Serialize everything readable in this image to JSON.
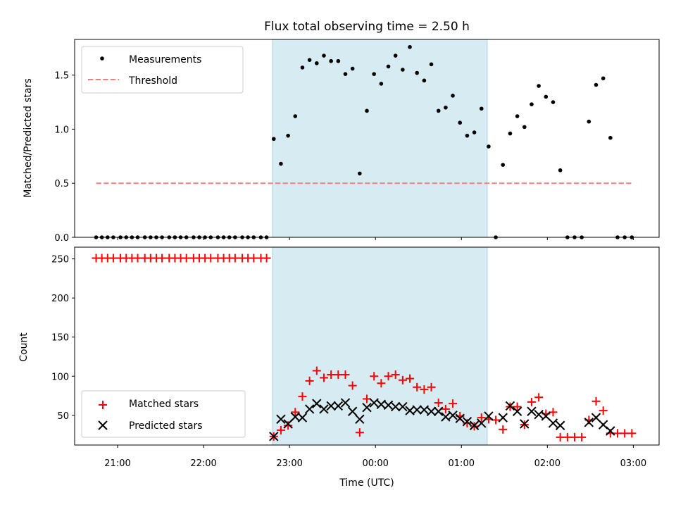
{
  "chart_data": [
    {
      "type": "scatter",
      "title": "Flux total observing time = 2.50 h",
      "xlabel": "",
      "ylabel": "Matched/Predicted stars",
      "ylim": [
        0,
        1.83
      ],
      "yticks": [
        "0.0",
        "0.5",
        "1.0",
        "1.5"
      ],
      "xlim": [
        "20:30",
        "03:18"
      ],
      "legend": {
        "position": "upper-left",
        "entries": [
          "Measurements",
          "Threshold"
        ]
      },
      "shaded_span": {
        "from": "22:48",
        "to": "01:18",
        "color": "#add8e6"
      },
      "series": [
        {
          "name": "Measurements",
          "marker": "dot",
          "color": "#000000",
          "points": [
            [
              "20:45",
              0
            ],
            [
              "20:49",
              0
            ],
            [
              "20:53",
              0
            ],
            [
              "20:57",
              0
            ],
            [
              "21:02",
              0
            ],
            [
              "21:06",
              0
            ],
            [
              "21:10",
              0
            ],
            [
              "21:14",
              0
            ],
            [
              "21:19",
              0
            ],
            [
              "21:23",
              0
            ],
            [
              "21:27",
              0
            ],
            [
              "21:31",
              0
            ],
            [
              "21:36",
              0
            ],
            [
              "21:40",
              0
            ],
            [
              "21:44",
              0
            ],
            [
              "21:48",
              0
            ],
            [
              "21:53",
              0
            ],
            [
              "21:57",
              0
            ],
            [
              "22:01",
              0
            ],
            [
              "22:05",
              0
            ],
            [
              "22:10",
              0
            ],
            [
              "22:14",
              0
            ],
            [
              "22:18",
              0
            ],
            [
              "22:22",
              0
            ],
            [
              "22:27",
              0
            ],
            [
              "22:31",
              0
            ],
            [
              "22:35",
              0
            ],
            [
              "22:40",
              0
            ],
            [
              "22:44",
              0
            ],
            [
              "22:49",
              0.91
            ],
            [
              "22:54",
              0.68
            ],
            [
              "22:59",
              0.94
            ],
            [
              "23:04",
              1.12
            ],
            [
              "23:09",
              1.57
            ],
            [
              "23:14",
              1.64
            ],
            [
              "23:19",
              1.61
            ],
            [
              "23:24",
              1.68
            ],
            [
              "23:29",
              1.63
            ],
            [
              "23:34",
              1.63
            ],
            [
              "23:39",
              1.51
            ],
            [
              "23:44",
              1.56
            ],
            [
              "23:49",
              0.59
            ],
            [
              "23:54",
              1.17
            ],
            [
              "23:59",
              1.51
            ],
            [
              "00:04",
              1.42
            ],
            [
              "00:09",
              1.58
            ],
            [
              "00:14",
              1.68
            ],
            [
              "00:19",
              1.55
            ],
            [
              "00:24",
              1.76
            ],
            [
              "00:29",
              1.52
            ],
            [
              "00:34",
              1.45
            ],
            [
              "00:39",
              1.6
            ],
            [
              "00:44",
              1.17
            ],
            [
              "00:49",
              1.2
            ],
            [
              "00:54",
              1.31
            ],
            [
              "00:59",
              1.06
            ],
            [
              "01:04",
              0.94
            ],
            [
              "01:09",
              0.97
            ],
            [
              "01:14",
              1.19
            ],
            [
              "01:19",
              0.84
            ],
            [
              "01:24",
              0
            ],
            [
              "01:29",
              0.67
            ],
            [
              "01:34",
              0.96
            ],
            [
              "01:39",
              1.12
            ],
            [
              "01:44",
              1.02
            ],
            [
              "01:49",
              1.23
            ],
            [
              "01:54",
              1.4
            ],
            [
              "01:59",
              1.3
            ],
            [
              "02:04",
              1.25
            ],
            [
              "02:09",
              0.62
            ],
            [
              "02:14",
              0
            ],
            [
              "02:19",
              0
            ],
            [
              "02:24",
              0
            ],
            [
              "02:29",
              1.07
            ],
            [
              "02:34",
              1.41
            ],
            [
              "02:39",
              1.47
            ],
            [
              "02:44",
              0.92
            ],
            [
              "02:49",
              0
            ],
            [
              "02:54",
              0
            ],
            [
              "02:59",
              0
            ]
          ]
        },
        {
          "name": "Threshold",
          "style": "dashed",
          "color": "#f08080",
          "points": [
            [
              "20:45",
              0.5
            ],
            [
              "03:00",
              0.5
            ]
          ]
        }
      ]
    },
    {
      "type": "scatter",
      "title": "",
      "xlabel": "Time (UTC)",
      "ylabel": "Count",
      "ylim": [
        12,
        265
      ],
      "yticks": [
        "50",
        "100",
        "150",
        "200",
        "250"
      ],
      "xticks": [
        "21:00",
        "22:00",
        "23:00",
        "00:00",
        "01:00",
        "02:00",
        "03:00"
      ],
      "xlim": [
        "20:30",
        "03:18"
      ],
      "legend": {
        "position": "lower-left",
        "entries": [
          "Matched stars",
          "Predicted stars"
        ]
      },
      "shaded_span": {
        "from": "22:48",
        "to": "01:18",
        "color": "#add8e6"
      },
      "series": [
        {
          "name": "Matched stars",
          "marker": "plus",
          "color": "#ff0000",
          "points": [
            [
              "20:45",
              251
            ],
            [
              "20:49",
              251
            ],
            [
              "20:53",
              251
            ],
            [
              "20:57",
              251
            ],
            [
              "21:02",
              251
            ],
            [
              "21:06",
              251
            ],
            [
              "21:10",
              251
            ],
            [
              "21:14",
              251
            ],
            [
              "21:19",
              251
            ],
            [
              "21:23",
              251
            ],
            [
              "21:27",
              251
            ],
            [
              "21:31",
              251
            ],
            [
              "21:36",
              251
            ],
            [
              "21:40",
              251
            ],
            [
              "21:44",
              251
            ],
            [
              "21:48",
              251
            ],
            [
              "21:53",
              251
            ],
            [
              "21:57",
              251
            ],
            [
              "22:01",
              251
            ],
            [
              "22:05",
              251
            ],
            [
              "22:10",
              251
            ],
            [
              "22:14",
              251
            ],
            [
              "22:18",
              251
            ],
            [
              "22:22",
              251
            ],
            [
              "22:27",
              251
            ],
            [
              "22:31",
              251
            ],
            [
              "22:35",
              251
            ],
            [
              "22:40",
              251
            ],
            [
              "22:44",
              251
            ],
            [
              "22:49",
              23
            ],
            [
              "22:54",
              31
            ],
            [
              "22:59",
              37
            ],
            [
              "23:04",
              54
            ],
            [
              "23:09",
              74
            ],
            [
              "23:14",
              94
            ],
            [
              "23:19",
              107
            ],
            [
              "23:24",
              98
            ],
            [
              "23:29",
              102
            ],
            [
              "23:34",
              102
            ],
            [
              "23:39",
              102
            ],
            [
              "23:44",
              88
            ],
            [
              "23:49",
              28
            ],
            [
              "23:54",
              71
            ],
            [
              "23:59",
              100
            ],
            [
              "00:04",
              91
            ],
            [
              "00:09",
              100
            ],
            [
              "00:14",
              102
            ],
            [
              "00:19",
              95
            ],
            [
              "00:24",
              97
            ],
            [
              "00:29",
              86
            ],
            [
              "00:34",
              83
            ],
            [
              "00:39",
              86
            ],
            [
              "00:44",
              66
            ],
            [
              "00:49",
              58
            ],
            [
              "00:54",
              65
            ],
            [
              "00:59",
              49
            ],
            [
              "01:04",
              40
            ],
            [
              "01:09",
              36
            ],
            [
              "01:14",
              47
            ],
            [
              "01:19",
              45
            ],
            [
              "01:24",
              44
            ],
            [
              "01:29",
              32
            ],
            [
              "01:34",
              61
            ],
            [
              "01:39",
              61
            ],
            [
              "01:44",
              38
            ],
            [
              "01:49",
              67
            ],
            [
              "01:54",
              73
            ],
            [
              "01:59",
              52
            ],
            [
              "02:04",
              54
            ],
            [
              "02:09",
              22
            ],
            [
              "02:14",
              22
            ],
            [
              "02:19",
              22
            ],
            [
              "02:24",
              22
            ],
            [
              "02:29",
              44
            ],
            [
              "02:34",
              68
            ],
            [
              "02:39",
              56
            ],
            [
              "02:44",
              27
            ],
            [
              "02:49",
              27
            ],
            [
              "02:54",
              27
            ],
            [
              "02:59",
              27
            ]
          ]
        },
        {
          "name": "Predicted stars",
          "marker": "x",
          "color": "#000000",
          "points": [
            [
              "22:49",
              23
            ],
            [
              "22:54",
              45
            ],
            [
              "22:59",
              39
            ],
            [
              "23:04",
              48
            ],
            [
              "23:09",
              47
            ],
            [
              "23:14",
              58
            ],
            [
              "23:19",
              65
            ],
            [
              "23:24",
              58
            ],
            [
              "23:29",
              62
            ],
            [
              "23:34",
              62
            ],
            [
              "23:39",
              66
            ],
            [
              "23:44",
              55
            ],
            [
              "23:49",
              45
            ],
            [
              "23:54",
              60
            ],
            [
              "23:59",
              66
            ],
            [
              "00:04",
              64
            ],
            [
              "00:09",
              63
            ],
            [
              "00:14",
              61
            ],
            [
              "00:19",
              61
            ],
            [
              "00:24",
              56
            ],
            [
              "00:29",
              57
            ],
            [
              "00:34",
              57
            ],
            [
              "00:39",
              55
            ],
            [
              "00:44",
              55
            ],
            [
              "00:49",
              48
            ],
            [
              "00:54",
              50
            ],
            [
              "00:59",
              46
            ],
            [
              "01:04",
              42
            ],
            [
              "01:09",
              37
            ],
            [
              "01:14",
              40
            ],
            [
              "01:19",
              49
            ],
            [
              "01:29",
              47
            ],
            [
              "01:34",
              62
            ],
            [
              "01:39",
              55
            ],
            [
              "01:44",
              39
            ],
            [
              "01:49",
              55
            ],
            [
              "01:54",
              51
            ],
            [
              "01:59",
              49
            ],
            [
              "02:04",
              40
            ],
            [
              "02:09",
              37
            ],
            [
              "02:29",
              41
            ],
            [
              "02:34",
              47
            ],
            [
              "02:39",
              38
            ],
            [
              "02:44",
              30
            ]
          ]
        }
      ]
    }
  ]
}
